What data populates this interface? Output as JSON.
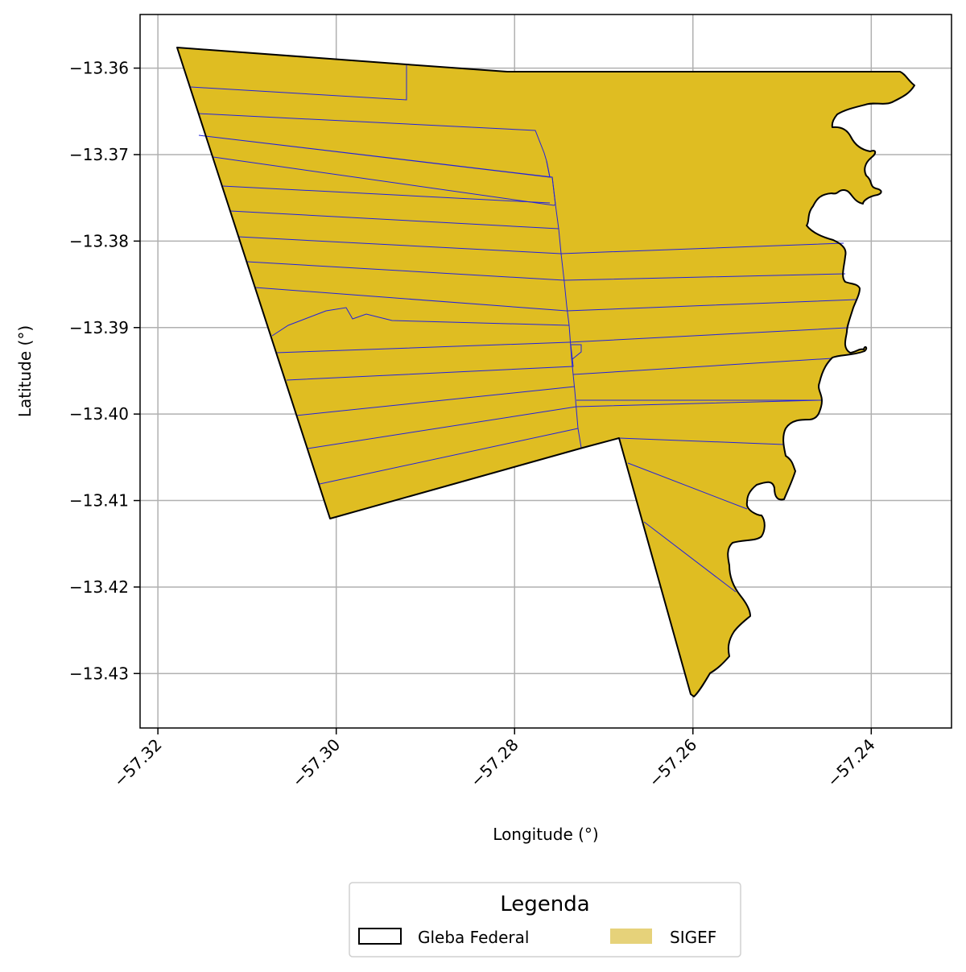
{
  "map": {
    "x_axis": {
      "label": "Longitude (°)",
      "range": [
        -57.322,
        -57.231
      ],
      "ticks": [
        -57.32,
        -57.3,
        -57.28,
        -57.26,
        -57.24
      ],
      "tick_labels": [
        "−57.32",
        "−57.30",
        "−57.28",
        "−57.26",
        "−57.24"
      ]
    },
    "y_axis": {
      "label": "Latitude (°)",
      "range": [
        -13.4363,
        -13.3538
      ],
      "ticks": [
        -13.36,
        -13.37,
        -13.38,
        -13.39,
        -13.4,
        -13.41,
        -13.42,
        -13.43
      ],
      "tick_labels": [
        "−13.36",
        "−13.37",
        "−13.38",
        "−13.39",
        "−13.40",
        "−13.41",
        "−13.42",
        "−13.43"
      ]
    },
    "grid": true,
    "legend": {
      "title": "Legenda",
      "placement": "bottom-center",
      "items": [
        {
          "label": "Gleba Federal",
          "style": "outline",
          "color": "#000000"
        },
        {
          "label": "SIGEF",
          "style": "fill",
          "color": "#e6d27a"
        }
      ]
    },
    "colors": {
      "sigef_fill": "#dfbd22",
      "parcel_lines": "#2222dd",
      "gleba_outline": "#000000",
      "grid": "#b0b0b0"
    }
  }
}
